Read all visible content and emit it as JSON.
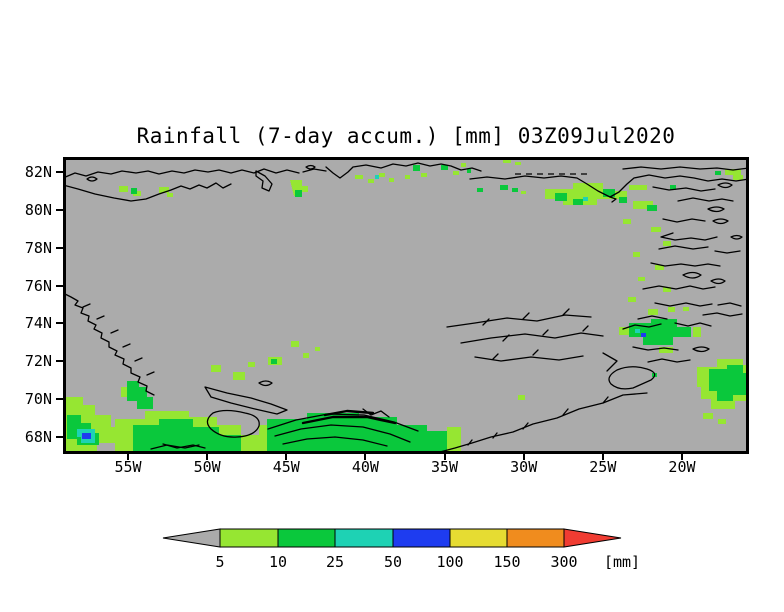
{
  "title": "Rainfall (7-day accum.) [mm] 03Z09Jul2020",
  "colors": {
    "background": "#ffffff",
    "map_gray": "#ababab",
    "coastline": "#000000",
    "rain_5_10": "#96e632",
    "rain_10_25": "#0ac83c",
    "rain_25_50": "#1ed2b4",
    "rain_50_100": "#1e3cf0",
    "rain_100_150": "#e6dc32",
    "rain_150_300": "#f08c1e",
    "rain_over_300": "#f03c32"
  },
  "map": {
    "background_color": "#ababab",
    "coastline_color": "#000000",
    "lat_axis": {
      "labels": [
        "82N",
        "80N",
        "78N",
        "76N",
        "74N",
        "72N",
        "70N",
        "68N"
      ]
    },
    "lon_axis": {
      "labels": [
        "55W",
        "50W",
        "45W",
        "40W",
        "35W",
        "30W",
        "25W",
        "20W"
      ]
    }
  },
  "colorbar": {
    "tick_labels": [
      "5",
      "10",
      "25",
      "50",
      "100",
      "150",
      "300"
    ],
    "unit": "[mm]",
    "segment_colors": [
      "#ababab",
      "#96e632",
      "#0ac83c",
      "#1ed2b4",
      "#1e3cf0",
      "#e6dc32",
      "#f08c1e",
      "#f03c32"
    ]
  }
}
